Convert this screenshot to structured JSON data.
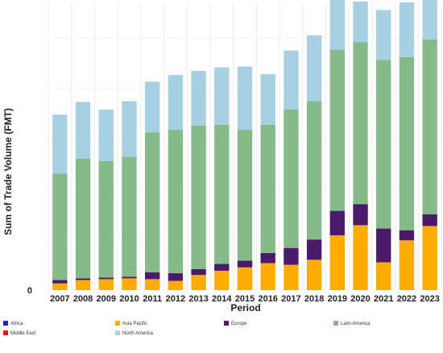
{
  "chart_data": {
    "type": "bar",
    "stacked": true,
    "xlabel": "Period",
    "ylabel": "Sum of Trade Volume (FMT)",
    "y_tick_labels": [
      "0"
    ],
    "grid": "vertical",
    "legend_position": "bottom",
    "categories": [
      "2007",
      "2008",
      "2009",
      "2010",
      "2011",
      "2012",
      "2013",
      "2014",
      "2015",
      "2016",
      "2017",
      "2018",
      "2019",
      "2020",
      "2021",
      "2022",
      "2023"
    ],
    "series": [
      {
        "name": "Africa",
        "color": "#1f1fd1",
        "values": [
          0,
          0,
          0,
          0,
          0,
          0,
          0,
          0,
          0,
          0,
          0,
          0,
          0,
          0,
          0,
          0,
          0
        ]
      },
      {
        "name": "Middle East",
        "color": "#e31a1c",
        "values": [
          0,
          0,
          0,
          0,
          0,
          0,
          0,
          0,
          0,
          0,
          0,
          0,
          0,
          0,
          0,
          0,
          0
        ]
      },
      {
        "name": "Asia Pacific",
        "color": "#ffab00",
        "values": [
          8,
          12,
          13,
          14,
          13,
          11,
          18,
          23,
          27,
          32,
          30,
          36,
          65,
          77,
          33,
          59,
          76
        ]
      },
      {
        "name": "Europe",
        "color": "#4a1a6b",
        "values": [
          4,
          2,
          2,
          2,
          8,
          9,
          7,
          8,
          8,
          12,
          20,
          24,
          29,
          25,
          40,
          12,
          14
        ]
      },
      {
        "name": "Latin America",
        "color": "#86ba8a",
        "values": [
          126,
          142,
          138,
          142,
          166,
          170,
          170,
          165,
          155,
          152,
          164,
          164,
          191,
          192,
          200,
          205,
          207
        ]
      },
      {
        "name": "North America",
        "color": "#a8d0e3",
        "values": [
          70,
          67,
          61,
          66,
          60,
          65,
          65,
          68,
          75,
          60,
          70,
          78,
          70,
          48,
          59,
          65,
          48
        ]
      }
    ]
  }
}
